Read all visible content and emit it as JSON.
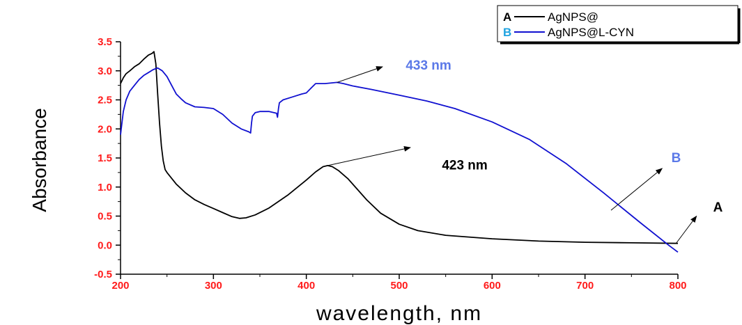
{
  "chart_data": {
    "type": "line",
    "xlabel": "wavelength, nm",
    "ylabel": "Absorbance",
    "xlim": [
      200,
      800
    ],
    "ylim": [
      -0.5,
      3.5
    ],
    "x_ticks": [
      200,
      300,
      400,
      500,
      600,
      700,
      800
    ],
    "y_ticks": [
      -0.5,
      0.0,
      0.5,
      1.0,
      1.5,
      2.0,
      2.5,
      3.0,
      3.5
    ],
    "tick_color": "#ff1a1a",
    "grid": false,
    "legend_position": "top-right",
    "legend": [
      {
        "key": "A",
        "label": "AgNPS@",
        "key_color": "#000000",
        "line_color": "#000000"
      },
      {
        "key": "B",
        "label": "AgNPS@L-CYN",
        "key_color": "#1fa3e0",
        "line_color": "#1010d0"
      }
    ],
    "series": [
      {
        "key": "A",
        "color": "#000000",
        "x": [
          200,
          203,
          206,
          210,
          215,
          220,
          225,
          230,
          234,
          236,
          238,
          240,
          242,
          244,
          246,
          248,
          250,
          255,
          260,
          270,
          280,
          290,
          300,
          310,
          320,
          328,
          335,
          345,
          360,
          380,
          400,
          410,
          418,
          423,
          428,
          435,
          445,
          455,
          465,
          480,
          500,
          520,
          550,
          600,
          650,
          700,
          750,
          800
        ],
        "y": [
          2.78,
          2.88,
          2.95,
          3.0,
          3.07,
          3.12,
          3.2,
          3.27,
          3.3,
          3.33,
          3.12,
          2.6,
          2.1,
          1.7,
          1.45,
          1.3,
          1.25,
          1.15,
          1.05,
          0.9,
          0.78,
          0.7,
          0.63,
          0.56,
          0.49,
          0.46,
          0.47,
          0.52,
          0.64,
          0.86,
          1.12,
          1.26,
          1.35,
          1.37,
          1.35,
          1.28,
          1.14,
          0.96,
          0.78,
          0.55,
          0.36,
          0.25,
          0.17,
          0.11,
          0.07,
          0.05,
          0.04,
          0.03
        ]
      },
      {
        "key": "B",
        "color": "#1010d0",
        "x": [
          200,
          203,
          206,
          210,
          215,
          220,
          225,
          230,
          235,
          240,
          245,
          250,
          255,
          260,
          265,
          270,
          280,
          290,
          300,
          310,
          320,
          330,
          338,
          340,
          341,
          342,
          345,
          350,
          360,
          368,
          369,
          370,
          371,
          375,
          385,
          395,
          400,
          405,
          410,
          420,
          433,
          440,
          450,
          470,
          500,
          530,
          560,
          600,
          640,
          680,
          720,
          760,
          790,
          800
        ],
        "y": [
          1.9,
          2.3,
          2.5,
          2.65,
          2.75,
          2.85,
          2.92,
          2.97,
          3.02,
          3.05,
          3.0,
          2.9,
          2.75,
          2.6,
          2.52,
          2.45,
          2.38,
          2.37,
          2.35,
          2.25,
          2.1,
          2.0,
          1.95,
          1.93,
          2.1,
          2.22,
          2.28,
          2.3,
          2.3,
          2.27,
          2.2,
          2.35,
          2.45,
          2.5,
          2.55,
          2.6,
          2.62,
          2.7,
          2.78,
          2.78,
          2.8,
          2.78,
          2.74,
          2.68,
          2.58,
          2.48,
          2.35,
          2.12,
          1.82,
          1.4,
          0.9,
          0.38,
          0.0,
          -0.12
        ]
      }
    ],
    "annotations": [
      {
        "text": "433 nm",
        "color": "#5b79e8",
        "at": [
          433,
          2.8
        ],
        "label_at": [
          507,
          3.02
        ],
        "arrow_to": [
          482,
          3.07
        ]
      },
      {
        "text": "423 nm",
        "color": "#000000",
        "at": [
          423,
          1.37
        ],
        "label_at": [
          546,
          1.3
        ],
        "arrow_to": [
          512,
          1.68
        ]
      },
      {
        "text": "B",
        "color": "#5b79e8",
        "at": [
          728,
          0.6
        ],
        "label_at": [
          793,
          1.43
        ],
        "arrow_to": [
          783,
          1.32
        ]
      },
      {
        "text": "A",
        "color": "#000000",
        "at": [
          798,
          0.03
        ],
        "label_at": [
          838,
          0.58
        ],
        "arrow_to": [
          820,
          0.5
        ]
      }
    ]
  }
}
